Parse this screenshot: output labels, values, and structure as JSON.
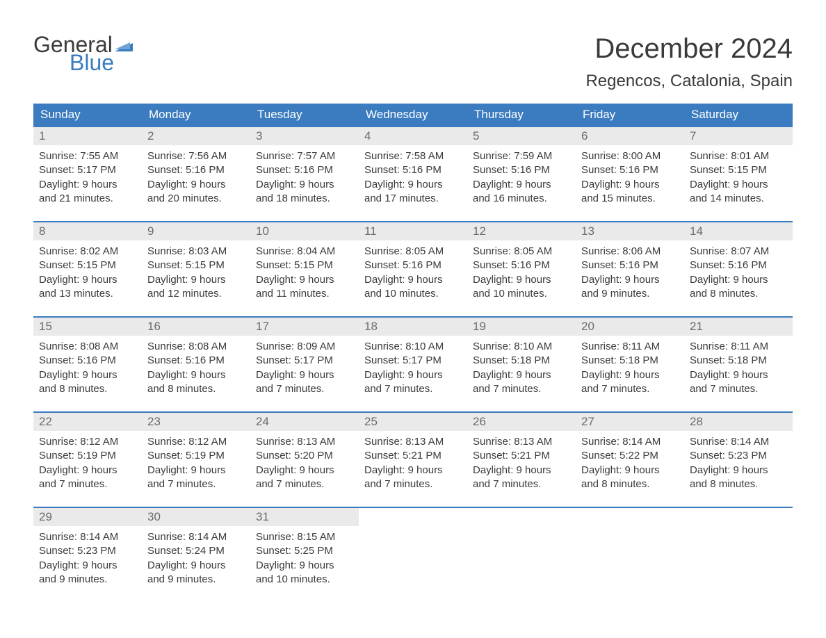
{
  "brand": {
    "word1": "General",
    "word2": "Blue",
    "word1_color": "#3a3a3a",
    "word2_color": "#3b7bbf",
    "flag_color": "#3b7bbf"
  },
  "title": "December 2024",
  "location": "Regencos, Catalonia, Spain",
  "colors": {
    "header_bg": "#3b7bbf",
    "header_text": "#ffffff",
    "row_border": "#3b7bbf",
    "day_number_bg": "#eaeaea",
    "day_number_text": "#6b6b6b",
    "body_text": "#3a3a3a",
    "page_bg": "#ffffff"
  },
  "typography": {
    "title_fontsize": 40,
    "location_fontsize": 24,
    "weekday_fontsize": 17,
    "daynum_fontsize": 17,
    "body_fontsize": 15
  },
  "weekdays": [
    "Sunday",
    "Monday",
    "Tuesday",
    "Wednesday",
    "Thursday",
    "Friday",
    "Saturday"
  ],
  "weeks": [
    [
      {
        "num": "1",
        "sunrise": "Sunrise: 7:55 AM",
        "sunset": "Sunset: 5:17 PM",
        "dl1": "Daylight: 9 hours",
        "dl2": "and 21 minutes."
      },
      {
        "num": "2",
        "sunrise": "Sunrise: 7:56 AM",
        "sunset": "Sunset: 5:16 PM",
        "dl1": "Daylight: 9 hours",
        "dl2": "and 20 minutes."
      },
      {
        "num": "3",
        "sunrise": "Sunrise: 7:57 AM",
        "sunset": "Sunset: 5:16 PM",
        "dl1": "Daylight: 9 hours",
        "dl2": "and 18 minutes."
      },
      {
        "num": "4",
        "sunrise": "Sunrise: 7:58 AM",
        "sunset": "Sunset: 5:16 PM",
        "dl1": "Daylight: 9 hours",
        "dl2": "and 17 minutes."
      },
      {
        "num": "5",
        "sunrise": "Sunrise: 7:59 AM",
        "sunset": "Sunset: 5:16 PM",
        "dl1": "Daylight: 9 hours",
        "dl2": "and 16 minutes."
      },
      {
        "num": "6",
        "sunrise": "Sunrise: 8:00 AM",
        "sunset": "Sunset: 5:16 PM",
        "dl1": "Daylight: 9 hours",
        "dl2": "and 15 minutes."
      },
      {
        "num": "7",
        "sunrise": "Sunrise: 8:01 AM",
        "sunset": "Sunset: 5:15 PM",
        "dl1": "Daylight: 9 hours",
        "dl2": "and 14 minutes."
      }
    ],
    [
      {
        "num": "8",
        "sunrise": "Sunrise: 8:02 AM",
        "sunset": "Sunset: 5:15 PM",
        "dl1": "Daylight: 9 hours",
        "dl2": "and 13 minutes."
      },
      {
        "num": "9",
        "sunrise": "Sunrise: 8:03 AM",
        "sunset": "Sunset: 5:15 PM",
        "dl1": "Daylight: 9 hours",
        "dl2": "and 12 minutes."
      },
      {
        "num": "10",
        "sunrise": "Sunrise: 8:04 AM",
        "sunset": "Sunset: 5:15 PM",
        "dl1": "Daylight: 9 hours",
        "dl2": "and 11 minutes."
      },
      {
        "num": "11",
        "sunrise": "Sunrise: 8:05 AM",
        "sunset": "Sunset: 5:16 PM",
        "dl1": "Daylight: 9 hours",
        "dl2": "and 10 minutes."
      },
      {
        "num": "12",
        "sunrise": "Sunrise: 8:05 AM",
        "sunset": "Sunset: 5:16 PM",
        "dl1": "Daylight: 9 hours",
        "dl2": "and 10 minutes."
      },
      {
        "num": "13",
        "sunrise": "Sunrise: 8:06 AM",
        "sunset": "Sunset: 5:16 PM",
        "dl1": "Daylight: 9 hours",
        "dl2": "and 9 minutes."
      },
      {
        "num": "14",
        "sunrise": "Sunrise: 8:07 AM",
        "sunset": "Sunset: 5:16 PM",
        "dl1": "Daylight: 9 hours",
        "dl2": "and 8 minutes."
      }
    ],
    [
      {
        "num": "15",
        "sunrise": "Sunrise: 8:08 AM",
        "sunset": "Sunset: 5:16 PM",
        "dl1": "Daylight: 9 hours",
        "dl2": "and 8 minutes."
      },
      {
        "num": "16",
        "sunrise": "Sunrise: 8:08 AM",
        "sunset": "Sunset: 5:16 PM",
        "dl1": "Daylight: 9 hours",
        "dl2": "and 8 minutes."
      },
      {
        "num": "17",
        "sunrise": "Sunrise: 8:09 AM",
        "sunset": "Sunset: 5:17 PM",
        "dl1": "Daylight: 9 hours",
        "dl2": "and 7 minutes."
      },
      {
        "num": "18",
        "sunrise": "Sunrise: 8:10 AM",
        "sunset": "Sunset: 5:17 PM",
        "dl1": "Daylight: 9 hours",
        "dl2": "and 7 minutes."
      },
      {
        "num": "19",
        "sunrise": "Sunrise: 8:10 AM",
        "sunset": "Sunset: 5:18 PM",
        "dl1": "Daylight: 9 hours",
        "dl2": "and 7 minutes."
      },
      {
        "num": "20",
        "sunrise": "Sunrise: 8:11 AM",
        "sunset": "Sunset: 5:18 PM",
        "dl1": "Daylight: 9 hours",
        "dl2": "and 7 minutes."
      },
      {
        "num": "21",
        "sunrise": "Sunrise: 8:11 AM",
        "sunset": "Sunset: 5:18 PM",
        "dl1": "Daylight: 9 hours",
        "dl2": "and 7 minutes."
      }
    ],
    [
      {
        "num": "22",
        "sunrise": "Sunrise: 8:12 AM",
        "sunset": "Sunset: 5:19 PM",
        "dl1": "Daylight: 9 hours",
        "dl2": "and 7 minutes."
      },
      {
        "num": "23",
        "sunrise": "Sunrise: 8:12 AM",
        "sunset": "Sunset: 5:19 PM",
        "dl1": "Daylight: 9 hours",
        "dl2": "and 7 minutes."
      },
      {
        "num": "24",
        "sunrise": "Sunrise: 8:13 AM",
        "sunset": "Sunset: 5:20 PM",
        "dl1": "Daylight: 9 hours",
        "dl2": "and 7 minutes."
      },
      {
        "num": "25",
        "sunrise": "Sunrise: 8:13 AM",
        "sunset": "Sunset: 5:21 PM",
        "dl1": "Daylight: 9 hours",
        "dl2": "and 7 minutes."
      },
      {
        "num": "26",
        "sunrise": "Sunrise: 8:13 AM",
        "sunset": "Sunset: 5:21 PM",
        "dl1": "Daylight: 9 hours",
        "dl2": "and 7 minutes."
      },
      {
        "num": "27",
        "sunrise": "Sunrise: 8:14 AM",
        "sunset": "Sunset: 5:22 PM",
        "dl1": "Daylight: 9 hours",
        "dl2": "and 8 minutes."
      },
      {
        "num": "28",
        "sunrise": "Sunrise: 8:14 AM",
        "sunset": "Sunset: 5:23 PM",
        "dl1": "Daylight: 9 hours",
        "dl2": "and 8 minutes."
      }
    ],
    [
      {
        "num": "29",
        "sunrise": "Sunrise: 8:14 AM",
        "sunset": "Sunset: 5:23 PM",
        "dl1": "Daylight: 9 hours",
        "dl2": "and 9 minutes."
      },
      {
        "num": "30",
        "sunrise": "Sunrise: 8:14 AM",
        "sunset": "Sunset: 5:24 PM",
        "dl1": "Daylight: 9 hours",
        "dl2": "and 9 minutes."
      },
      {
        "num": "31",
        "sunrise": "Sunrise: 8:15 AM",
        "sunset": "Sunset: 5:25 PM",
        "dl1": "Daylight: 9 hours",
        "dl2": "and 10 minutes."
      },
      null,
      null,
      null,
      null
    ]
  ]
}
